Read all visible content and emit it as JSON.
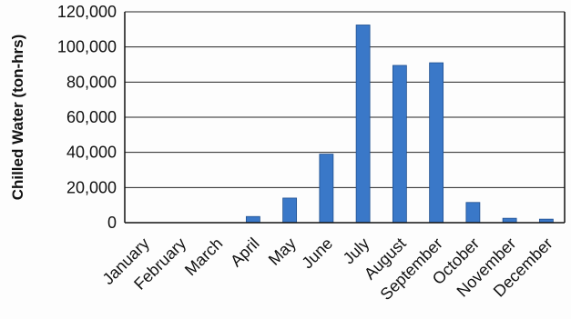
{
  "chart_data": {
    "type": "bar",
    "title": "",
    "xlabel": "",
    "ylabel": "Chilled Water (ton-hrs)",
    "categories": [
      "January",
      "February",
      "March",
      "April",
      "May",
      "June",
      "July",
      "August",
      "September",
      "October",
      "November",
      "December"
    ],
    "values": [
      0,
      0,
      0,
      3500,
      14000,
      39000,
      112500,
      89500,
      91000,
      11500,
      2500,
      2000
    ],
    "ylim": [
      0,
      120000
    ],
    "yticks": [
      0,
      20000,
      40000,
      60000,
      80000,
      100000,
      120000
    ],
    "ytick_labels": [
      "0",
      "20,000",
      "40,000",
      "60,000",
      "80,000",
      "100,000",
      "120,000"
    ],
    "grid": "horizontal",
    "legend": "none",
    "colors": {
      "bar": "#3a78c8",
      "bar_edge": "#1f4f8f",
      "grid": "#222222",
      "axis": "#111111"
    }
  }
}
